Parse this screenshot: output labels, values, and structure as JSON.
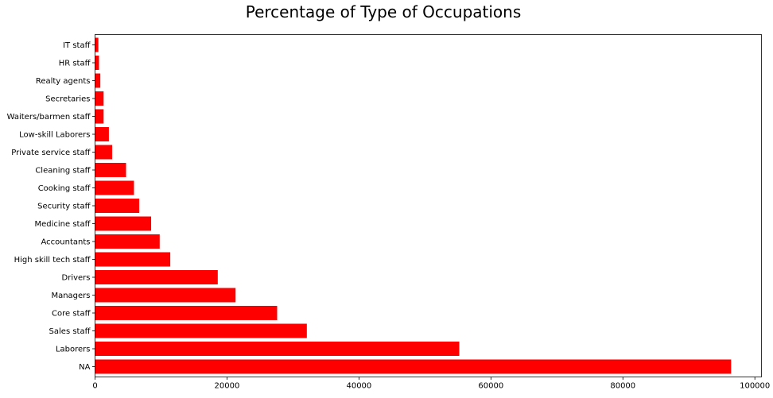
{
  "chart_data": {
    "type": "bar",
    "orientation": "horizontal",
    "title": "Percentage of Type of Occupations",
    "xlabel": "",
    "ylabel": "",
    "bar_color": "#ff0000",
    "grid": false,
    "xlim": [
      0,
      101000
    ],
    "xticks": [
      0,
      20000,
      40000,
      60000,
      80000,
      100000
    ],
    "xtick_labels": [
      "0",
      "20000",
      "40000",
      "60000",
      "80000",
      "100000"
    ],
    "categories": [
      "NA",
      "Laborers",
      "Sales staff",
      "Core staff",
      "Managers",
      "Drivers",
      "High skill tech staff",
      "Accountants",
      "Medicine staff",
      "Security staff",
      "Cooking staff",
      "Cleaning staff",
      "Private service staff",
      "Low-skill Laborers",
      "Waiters/barmen staff",
      "Secretaries",
      "Realty agents",
      "HR staff",
      "IT staff"
    ],
    "values": [
      96400,
      55200,
      32100,
      27600,
      21300,
      18600,
      11400,
      9800,
      8500,
      6700,
      5900,
      4700,
      2600,
      2100,
      1300,
      1300,
      800,
      600,
      500
    ]
  }
}
